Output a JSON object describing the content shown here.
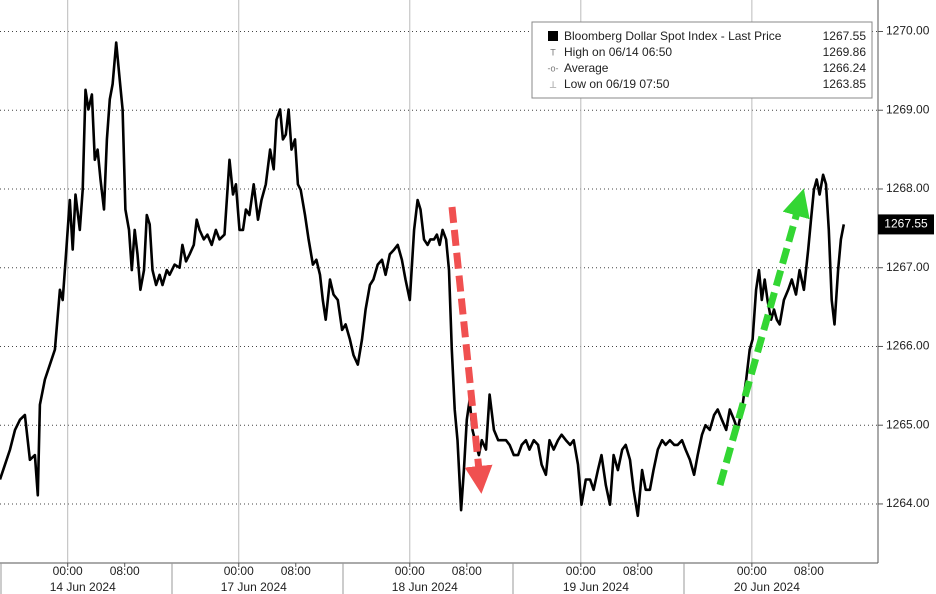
{
  "chart_data": {
    "type": "line",
    "x": [
      -9.5,
      -8.8,
      -8.1,
      -7.4,
      -6.7,
      -6.0,
      -5.3,
      -4.6,
      -4.2,
      -3.9,
      -3.2,
      -2.5,
      -1.8,
      -1.1,
      -0.7,
      -0.3,
      0.3,
      0.7,
      1.1,
      1.7,
      2.1,
      2.5,
      2.9,
      3.4,
      3.8,
      4.2,
      4.6,
      5.1,
      5.5,
      5.9,
      6.3,
      6.8,
      7.3,
      7.7,
      8.1,
      8.6,
      9.0,
      9.4,
      9.8,
      10.2,
      10.7,
      11.1,
      11.5,
      11.9,
      12.4,
      12.9,
      13.3,
      13.9,
      14.3,
      15.0,
      15.7,
      16.1,
      16.6,
      17.1,
      17.7,
      18.1,
      18.5,
      19.1,
      19.6,
      20.2,
      20.8,
      21.3,
      22.0,
      22.7,
      23.2,
      23.6,
      24.1,
      24.6,
      25.0,
      25.5,
      26.1,
      26.7,
      27.2,
      27.8,
      28.4,
      28.9,
      29.3,
      29.8,
      30.2,
      30.6,
      31.0,
      31.4,
      31.9,
      32.3,
      32.7,
      33.3,
      33.8,
      34.4,
      34.9,
      35.4,
      35.8,
      36.2,
      36.8,
      37.3,
      37.9,
      38.5,
      39.0,
      39.6,
      40.1,
      40.7,
      41.3,
      41.8,
      42.4,
      42.9,
      43.5,
      44.1,
      44.6,
      45.2,
      45.8,
      46.3,
      46.9,
      47.4,
      48.0,
      48.6,
      49.1,
      49.5,
      50.0,
      50.5,
      50.9,
      51.4,
      51.8,
      52.2,
      52.6,
      53.1,
      53.5,
      53.9,
      54.3,
      54.7,
      55.2,
      55.6,
      56.0,
      56.4,
      56.8,
      57.3,
      57.7,
      58.1,
      58.7,
      59.2,
      59.8,
      60.4,
      60.9,
      61.5,
      62.0,
      62.6,
      63.2,
      63.7,
      64.3,
      64.8,
      65.4,
      66.0,
      66.5,
      67.1,
      67.6,
      68.2,
      68.8,
      69.3,
      69.9,
      70.5,
      71.0,
      71.6,
      72.1,
      72.7,
      73.3,
      73.8,
      74.4,
      74.9,
      75.5,
      76.1,
      76.6,
      77.2,
      77.8,
      78.3,
      78.9,
      79.4,
      80.0,
      80.6,
      81.1,
      81.7,
      82.2,
      82.8,
      83.4,
      83.9,
      84.5,
      85.1,
      85.6,
      86.2,
      86.7,
      87.3,
      87.9,
      88.4,
      89.0,
      89.5,
      90.1,
      90.7,
      91.2,
      91.8,
      92.4,
      92.9,
      93.5,
      94.0,
      94.6,
      95.2,
      95.7,
      96.1,
      96.6,
      97.0,
      97.4,
      97.8,
      98.2,
      98.7,
      99.1,
      99.5,
      99.9,
      100.5,
      101.1,
      101.6,
      102.2,
      102.7,
      103.3,
      103.9,
      104.3,
      104.7,
      105.1,
      105.5,
      106.0,
      106.4,
      106.8,
      107.2,
      107.6,
      108.1,
      108.5,
      108.9
    ],
    "series": [
      {
        "name": "Bloomberg Dollar Spot Index - Last Price",
        "color": "#000000",
        "values": [
          1264.31,
          1264.5,
          1264.69,
          1264.94,
          1265.07,
          1265.13,
          1264.56,
          1264.62,
          1264.11,
          1265.26,
          1265.58,
          1265.77,
          1265.96,
          1266.72,
          1266.59,
          1267.1,
          1267.86,
          1267.23,
          1267.93,
          1267.48,
          1267.99,
          1269.26,
          1269.01,
          1269.2,
          1268.37,
          1268.5,
          1268.12,
          1267.74,
          1268.63,
          1269.14,
          1269.33,
          1269.86,
          1269.39,
          1269.01,
          1267.74,
          1267.48,
          1266.97,
          1267.48,
          1267.17,
          1266.72,
          1266.97,
          1267.67,
          1267.55,
          1266.97,
          1266.78,
          1266.91,
          1266.78,
          1266.97,
          1266.91,
          1267.04,
          1267.0,
          1267.29,
          1267.08,
          1267.17,
          1267.29,
          1267.61,
          1267.48,
          1267.36,
          1267.42,
          1267.29,
          1267.48,
          1267.36,
          1267.42,
          1268.37,
          1267.93,
          1268.06,
          1267.48,
          1267.48,
          1267.74,
          1267.67,
          1268.06,
          1267.61,
          1267.86,
          1268.06,
          1268.5,
          1268.25,
          1268.88,
          1269.01,
          1268.63,
          1268.69,
          1269.01,
          1268.5,
          1268.63,
          1268.06,
          1267.99,
          1267.67,
          1267.36,
          1267.04,
          1267.1,
          1266.91,
          1266.59,
          1266.34,
          1266.85,
          1266.66,
          1266.59,
          1266.21,
          1266.28,
          1266.09,
          1265.89,
          1265.77,
          1266.09,
          1266.47,
          1266.78,
          1266.85,
          1267.04,
          1267.1,
          1266.91,
          1267.17,
          1267.23,
          1267.29,
          1267.1,
          1266.85,
          1266.59,
          1267.48,
          1267.86,
          1267.74,
          1267.36,
          1267.29,
          1267.36,
          1267.36,
          1267.42,
          1267.29,
          1267.48,
          1267.36,
          1266.97,
          1265.96,
          1265.2,
          1264.81,
          1263.92,
          1264.43,
          1265.07,
          1265.32,
          1264.94,
          1264.75,
          1264.62,
          1264.81,
          1264.69,
          1265.39,
          1264.94,
          1264.81,
          1264.81,
          1264.81,
          1264.75,
          1264.62,
          1264.62,
          1264.75,
          1264.81,
          1264.69,
          1264.81,
          1264.75,
          1264.5,
          1264.37,
          1264.81,
          1264.69,
          1264.81,
          1264.88,
          1264.81,
          1264.75,
          1264.81,
          1264.5,
          1263.99,
          1264.31,
          1264.31,
          1264.18,
          1264.43,
          1264.62,
          1264.24,
          1263.99,
          1264.62,
          1264.43,
          1264.69,
          1264.75,
          1264.56,
          1264.18,
          1263.85,
          1264.43,
          1264.18,
          1264.18,
          1264.43,
          1264.69,
          1264.81,
          1264.75,
          1264.81,
          1264.75,
          1264.75,
          1264.81,
          1264.69,
          1264.56,
          1264.37,
          1264.62,
          1264.88,
          1265.0,
          1264.94,
          1265.13,
          1265.2,
          1265.07,
          1264.94,
          1265.2,
          1265.07,
          1264.94,
          1265.2,
          1265.58,
          1265.96,
          1266.09,
          1266.72,
          1266.97,
          1266.59,
          1266.85,
          1266.59,
          1266.34,
          1266.47,
          1266.34,
          1266.28,
          1266.59,
          1266.72,
          1266.85,
          1266.66,
          1266.97,
          1266.72,
          1267.23,
          1267.61,
          1267.99,
          1268.12,
          1267.93,
          1268.18,
          1268.06,
          1267.48,
          1266.59,
          1266.28,
          1266.97,
          1267.36,
          1267.55
        ]
      }
    ],
    "last_value": 1267.55,
    "legend_rows": [
      {
        "label": "High on 06/14 06:50",
        "value": 1269.86
      },
      {
        "label": "Average",
        "value": 1266.24
      },
      {
        "label": "Low on 06/19 07:50",
        "value": 1263.85
      }
    ],
    "xlim": [
      -9.5,
      113.7
    ],
    "xticks": [
      {
        "value": 0,
        "label": "00:00"
      },
      {
        "value": 8,
        "label": "08:00"
      },
      {
        "value": 24,
        "label": "00:00"
      },
      {
        "value": 32,
        "label": "08:00"
      },
      {
        "value": 48,
        "label": "00:00"
      },
      {
        "value": 56,
        "label": "08:00"
      },
      {
        "value": 72,
        "label": "00:00"
      },
      {
        "value": 80,
        "label": "08:00"
      },
      {
        "value": 96,
        "label": "00:00"
      },
      {
        "value": 104,
        "label": "08:00"
      }
    ],
    "date_ticks": [
      {
        "value": 0,
        "label": "14 Jun 2024"
      },
      {
        "value": 24,
        "label": "17 Jun 2024"
      },
      {
        "value": 48,
        "label": "18 Jun 2024"
      },
      {
        "value": 72,
        "label": "19 Jun 2024"
      },
      {
        "value": 96,
        "label": "20 Jun 2024"
      }
    ],
    "ylim": [
      1263.25,
      1270.4
    ],
    "yticks": [
      {
        "value": 1264,
        "label": "1264.00"
      },
      {
        "value": 1265,
        "label": "1265.00"
      },
      {
        "value": 1266,
        "label": "1266.00"
      },
      {
        "value": 1267,
        "label": "1267.00"
      },
      {
        "value": 1268,
        "label": "1268.00"
      },
      {
        "value": 1269,
        "label": "1269.00"
      },
      {
        "value": 1270,
        "label": "1270.00"
      }
    ],
    "grid": true
  }
}
